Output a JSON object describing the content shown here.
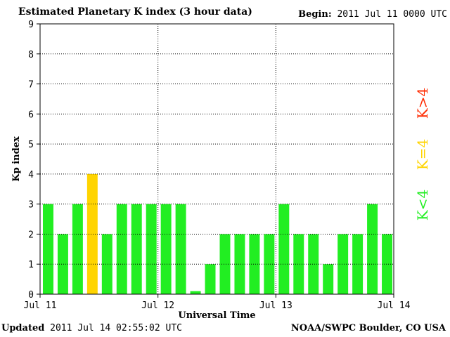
{
  "header": {
    "title": "Estimated Planetary K index (3 hour data)",
    "begin_label": "Begin:",
    "begin_value": "2011 Jul 11 0000 UTC"
  },
  "footer": {
    "updated_label": "Updated",
    "updated_value": "2011 Jul 14 02:55:02 UTC",
    "source": "NOAA/SWPC Boulder, CO USA"
  },
  "legend": [
    {
      "label": "K<4",
      "color": "#22ee22"
    },
    {
      "label": "K=4",
      "color": "#ffd400"
    },
    {
      "label": "K>4",
      "color": "#ff2a00"
    }
  ],
  "chart_data": {
    "type": "bar",
    "title": "Estimated Planetary K index (3 hour data)",
    "xlabel": "Universal Time",
    "ylabel": "Kp index",
    "ylim": [
      0,
      9
    ],
    "yticks": [
      "0",
      "1",
      "2",
      "3",
      "4",
      "5",
      "6",
      "7",
      "8",
      "9"
    ],
    "xticks": [
      "Jul 11",
      "Jul 12",
      "Jul 13",
      "Jul 14"
    ],
    "grid": true,
    "values": [
      3,
      2,
      3,
      4,
      2,
      3,
      3,
      3,
      3,
      3,
      0.1,
      1,
      2,
      2,
      2,
      2,
      3,
      2,
      2,
      1,
      2,
      2,
      3,
      2
    ],
    "colors": {
      "below4": "#22ee22",
      "equal4": "#ffd400",
      "above4": "#ff2a00"
    }
  }
}
